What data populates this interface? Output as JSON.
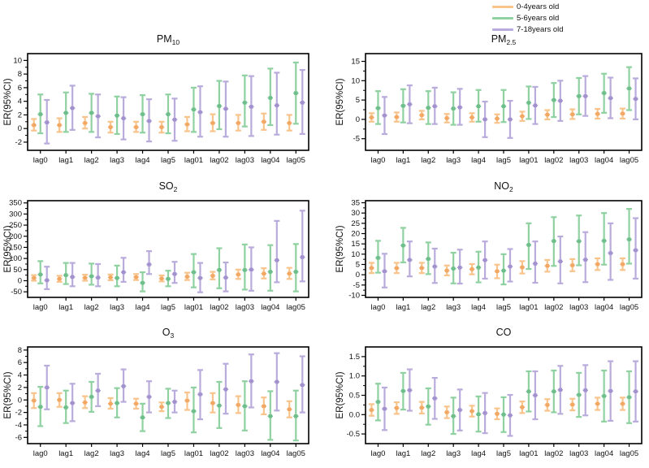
{
  "legend": {
    "items": [
      {
        "label": "0-4years old",
        "color": "#F8C48C"
      },
      {
        "label": "5-6years old",
        "color": "#8FD1A0"
      },
      {
        "label": "7-18years old",
        "color": "#B9ABDB"
      }
    ]
  },
  "chart_data": {
    "type": "errorbar",
    "ylabel": "ER(95%CI)",
    "grid": false,
    "legend_position": "top-right",
    "categories": [
      "lag0",
      "lag1",
      "lag2",
      "lag3",
      "lag4",
      "lag5",
      "lag01",
      "lag02",
      "lag03",
      "lag04",
      "lag05"
    ],
    "series_names": [
      "0-4years old",
      "5-6years old",
      "7-18years old"
    ],
    "series_colors": [
      "#F8C48C",
      "#8FD1A0",
      "#B9ABDB"
    ],
    "marker_colors": [
      "#F2A763",
      "#6DBE8A",
      "#A291CE"
    ],
    "panels": [
      {
        "id": "pm10",
        "title_main": "PM",
        "title_sub": "10",
        "ylim": [
          -3.2,
          11
        ],
        "yticks": [
          -2,
          0,
          2,
          4,
          6,
          8,
          10
        ],
        "ytick_labels": [
          "-2",
          "0",
          "2",
          "4",
          "6",
          "8",
          "10"
        ],
        "series": [
          {
            "name": "0-4years old",
            "mean": [
              0.5,
              0.5,
              0.8,
              0.2,
              0.2,
              0.2,
              0.6,
              0.8,
              0.8,
              1.0,
              0.8
            ],
            "lower": [
              -0.3,
              -0.5,
              0.0,
              -0.6,
              -0.5,
              -0.6,
              -0.4,
              -0.4,
              -0.3,
              -0.2,
              -0.3
            ],
            "upper": [
              1.4,
              1.5,
              1.7,
              1.0,
              1.0,
              1.0,
              1.7,
              2.1,
              2.0,
              2.2,
              2.0
            ]
          },
          {
            "name": "5-6years old",
            "mean": [
              2.1,
              2.3,
              2.3,
              1.9,
              2.1,
              2.1,
              2.8,
              3.3,
              3.8,
              4.5,
              5.2
            ],
            "lower": [
              -0.7,
              -0.5,
              -0.5,
              -0.8,
              -0.6,
              -0.7,
              -0.5,
              -0.1,
              0.3,
              0.5,
              0.7
            ],
            "upper": [
              5.0,
              5.3,
              5.1,
              4.7,
              4.9,
              5.0,
              6.0,
              7.0,
              7.8,
              8.8,
              9.7
            ]
          },
          {
            "name": "7-18years old",
            "mean": [
              0.9,
              3.0,
              1.8,
              1.5,
              1.1,
              1.3,
              2.4,
              2.9,
              3.2,
              3.4,
              3.8
            ],
            "lower": [
              -2.2,
              -0.2,
              -1.3,
              -1.6,
              -1.9,
              -1.8,
              -1.2,
              -1.2,
              -1.1,
              -0.9,
              -0.8
            ],
            "upper": [
              4.2,
              6.3,
              5.0,
              4.6,
              4.3,
              4.4,
              6.2,
              6.9,
              7.7,
              8.2,
              8.6
            ]
          }
        ]
      },
      {
        "id": "pm25",
        "title_main": "PM",
        "title_sub": "2.5",
        "ylim": [
          -8,
          17
        ],
        "yticks": [
          -5,
          0,
          5,
          10,
          15
        ],
        "ytick_labels": [
          "-5",
          "0",
          "5",
          "10",
          "15"
        ],
        "series": [
          {
            "name": "0-4years old",
            "mean": [
              0.5,
              0.6,
              1.1,
              0.3,
              0.5,
              0.2,
              0.8,
              1.2,
              1.3,
              1.4,
              1.5
            ],
            "lower": [
              -0.6,
              -0.6,
              0.0,
              -0.8,
              -0.6,
              -0.9,
              -0.4,
              0.0,
              0.1,
              0.2,
              0.2
            ],
            "upper": [
              1.6,
              1.8,
              2.2,
              1.4,
              1.6,
              1.3,
              2.0,
              2.4,
              2.6,
              2.7,
              2.8
            ]
          },
          {
            "name": "5-6years old",
            "mean": [
              2.9,
              3.5,
              3.0,
              2.8,
              3.4,
              3.4,
              4.3,
              5.0,
              6.0,
              6.8,
              8.0
            ],
            "lower": [
              -1.2,
              -0.8,
              -1.2,
              -1.4,
              -0.6,
              -0.7,
              0.1,
              0.6,
              1.3,
              1.7,
              2.4
            ],
            "upper": [
              7.3,
              7.8,
              7.3,
              7.0,
              7.6,
              7.6,
              8.5,
              9.4,
              10.7,
              11.8,
              13.5
            ]
          },
          {
            "name": "7-18years old",
            "mean": [
              1.0,
              3.9,
              3.4,
              3.1,
              0.0,
              0.0,
              3.6,
              4.8,
              6.0,
              5.5,
              5.3
            ],
            "lower": [
              -3.8,
              -1.0,
              -1.2,
              -1.4,
              -4.6,
              -4.8,
              -1.2,
              -0.4,
              0.9,
              0.3,
              0.0
            ],
            "upper": [
              5.8,
              8.8,
              8.2,
              7.9,
              4.6,
              4.8,
              8.4,
              10.0,
              11.2,
              10.8,
              10.6
            ]
          }
        ]
      },
      {
        "id": "so2",
        "title_main": "SO",
        "title_sub": "2",
        "ylim": [
          -75,
          360
        ],
        "yticks": [
          -50,
          0,
          50,
          100,
          150,
          200,
          250,
          300,
          350
        ],
        "ytick_labels": [
          "-50",
          "0",
          "50",
          "100",
          "150",
          "200",
          "250",
          "300",
          "350"
        ],
        "series": [
          {
            "name": "0-4years old",
            "mean": [
              12,
              8,
              13,
              15,
              16,
              10,
              18,
              22,
              28,
              32,
              32
            ],
            "lower": [
              0,
              -5,
              0,
              2,
              3,
              -3,
              3,
              6,
              8,
              10,
              8
            ],
            "upper": [
              25,
              22,
              27,
              28,
              30,
              24,
              36,
              40,
              50,
              56,
              58
            ]
          },
          {
            "name": "5-6years old",
            "mean": [
              28,
              25,
              20,
              12,
              -10,
              8,
              38,
              48,
              48,
              40,
              40
            ],
            "lower": [
              -12,
              -15,
              -18,
              -25,
              -48,
              -25,
              -30,
              -34,
              -40,
              -45,
              -48
            ],
            "upper": [
              88,
              80,
              77,
              68,
              38,
              45,
              120,
              146,
              163,
              160,
              165
            ]
          },
          {
            "name": "7-18years old",
            "mean": [
              2,
              17,
              14,
              38,
              73,
              30,
              12,
              14,
              50,
              92,
              106
            ],
            "lower": [
              -38,
              -25,
              -25,
              -5,
              30,
              -10,
              -52,
              -48,
              -45,
              -7,
              -3
            ],
            "upper": [
              63,
              80,
              75,
              103,
              133,
              85,
              80,
              82,
              150,
              269,
              315
            ]
          }
        ]
      },
      {
        "id": "no2",
        "title_main": "NO",
        "title_sub": "2",
        "ylim": [
          -11,
          36
        ],
        "yticks": [
          -10,
          -5,
          0,
          5,
          10,
          15,
          20,
          25,
          30,
          35
        ],
        "ytick_labels": [
          "-10",
          "-5",
          "0",
          "5",
          "10",
          "15",
          "20",
          "25",
          "30",
          "35"
        ],
        "series": [
          {
            "name": "0-4years old",
            "mean": [
              3.3,
              3.2,
              3.3,
              2.0,
              2.7,
              1.7,
              3.6,
              4.3,
              4.6,
              5.1,
              5.1
            ],
            "lower": [
              0.8,
              0.8,
              0.8,
              -0.3,
              0.2,
              -1.7,
              0.6,
              1.5,
              1.7,
              2.3,
              2.3
            ],
            "upper": [
              5.8,
              5.8,
              5.8,
              4.5,
              5.2,
              4.9,
              6.6,
              7.2,
              7.6,
              8.0,
              8.0
            ]
          },
          {
            "name": "5-6years old",
            "mean": [
              8.2,
              14.2,
              7.7,
              3.0,
              3.5,
              2.0,
              14.5,
              16.4,
              16.3,
              16.5,
              17.2
            ],
            "lower": [
              1.0,
              6.0,
              0.3,
              -4.2,
              -3.7,
              -4.7,
              2.8,
              4.3,
              4.6,
              4.9,
              5.4
            ],
            "upper": [
              16.5,
              22.8,
              15.7,
              10.7,
              11.2,
              10.0,
              25.0,
              28.0,
              28.8,
              30.0,
              32.0
            ]
          },
          {
            "name": "7-18years old",
            "mean": [
              1.7,
              7.2,
              4.0,
              3.5,
              7.1,
              4.0,
              5.4,
              6.5,
              7.3,
              10.5,
              11.9
            ],
            "lower": [
              -6.2,
              -0.8,
              -4.0,
              -4.3,
              -1.9,
              -3.3,
              -3.9,
              -4.2,
              -3.6,
              -2.5,
              -1.9
            ],
            "upper": [
              10.2,
              16.2,
              12.7,
              12.2,
              16.2,
              12.5,
              16.2,
              18.6,
              20.7,
              25.0,
              27.5
            ]
          }
        ]
      },
      {
        "id": "o3",
        "title_main": "O",
        "title_sub": "3",
        "ylim": [
          -7,
          8.5
        ],
        "yticks": [
          -6,
          -4,
          -2,
          0,
          2,
          4,
          6,
          8
        ],
        "ytick_labels": [
          "-6",
          "-4",
          "-2",
          "0",
          "2",
          "4",
          "6",
          "8"
        ],
        "series": [
          {
            "name": "0-4years old",
            "mean": [
              -0.1,
              0.0,
              -0.4,
              -0.6,
              -0.6,
              -1.1,
              -0.1,
              -0.5,
              -0.8,
              -1.0,
              -1.5
            ],
            "lower": [
              -1.3,
              -1.1,
              -1.3,
              -1.4,
              -1.4,
              -1.8,
              -1.6,
              -2.0,
              -2.1,
              -2.3,
              -2.8
            ],
            "upper": [
              1.1,
              1.1,
              0.6,
              0.3,
              0.2,
              -0.4,
              1.2,
              1.1,
              0.6,
              0.4,
              -0.2
            ]
          },
          {
            "name": "5-6years old",
            "mean": [
              -1.1,
              -1.2,
              0.5,
              -0.5,
              -2.8,
              -0.5,
              -1.8,
              -0.9,
              -1.0,
              -2.6,
              -2.6
            ],
            "lower": [
              -4.2,
              -3.7,
              -1.9,
              -2.8,
              -5.0,
              -2.9,
              -5.2,
              -4.5,
              -4.9,
              -6.4,
              -6.5
            ],
            "upper": [
              2.1,
              1.5,
              2.9,
              1.9,
              -0.6,
              1.8,
              2.0,
              2.9,
              3.0,
              1.4,
              1.5
            ]
          },
          {
            "name": "7-18years old",
            "mean": [
              2.0,
              -0.5,
              1.5,
              2.2,
              0.5,
              -0.3,
              0.9,
              1.7,
              3.0,
              2.9,
              2.4
            ],
            "lower": [
              -1.5,
              -3.4,
              -1.0,
              -0.3,
              -2.0,
              -2.0,
              -3.1,
              -2.2,
              -1.2,
              -1.7,
              -2.0
            ],
            "upper": [
              5.5,
              2.6,
              4.2,
              4.9,
              3.0,
              1.5,
              4.8,
              5.8,
              7.3,
              7.5,
              7.0
            ]
          }
        ]
      },
      {
        "id": "co",
        "title_main": "CO",
        "title_sub": "",
        "ylim": [
          -0.75,
          1.75
        ],
        "yticks": [
          -0.5,
          0.0,
          0.5,
          1.0,
          1.5
        ],
        "ytick_labels": [
          "-0.5",
          "0.0",
          "0.5",
          "1.0",
          "1.5"
        ],
        "series": [
          {
            "name": "0-4years old",
            "mean": [
              0.12,
              0.17,
              0.18,
              0.06,
              0.09,
              0.02,
              0.19,
              0.25,
              0.26,
              0.28,
              0.28
            ],
            "lower": [
              -0.03,
              0.02,
              0.03,
              -0.09,
              -0.05,
              -0.12,
              0.04,
              0.1,
              0.11,
              0.12,
              0.12
            ],
            "upper": [
              0.27,
              0.32,
              0.33,
              0.21,
              0.23,
              0.16,
              0.34,
              0.4,
              0.41,
              0.44,
              0.44
            ]
          },
          {
            "name": "5-6years old",
            "mean": [
              0.33,
              0.61,
              0.21,
              -0.04,
              0.01,
              0.0,
              0.6,
              0.6,
              0.51,
              0.48,
              0.45
            ],
            "lower": [
              -0.15,
              0.13,
              -0.26,
              -0.5,
              -0.44,
              -0.45,
              0.08,
              0.06,
              -0.06,
              -0.18,
              -0.22
            ],
            "upper": [
              0.8,
              1.08,
              0.68,
              0.44,
              0.47,
              0.45,
              1.12,
              1.14,
              1.08,
              1.14,
              1.12
            ]
          },
          {
            "name": "7-18years old",
            "mean": [
              0.15,
              0.63,
              0.42,
              0.12,
              0.04,
              -0.02,
              0.5,
              0.64,
              0.63,
              0.61,
              0.6
            ],
            "lower": [
              -0.4,
              0.1,
              -0.11,
              -0.41,
              -0.48,
              -0.55,
              -0.12,
              0.02,
              -0.02,
              -0.16,
              -0.18
            ],
            "upper": [
              0.7,
              1.17,
              0.95,
              0.65,
              0.56,
              0.51,
              1.12,
              1.26,
              1.28,
              1.38,
              1.38
            ]
          }
        ]
      }
    ]
  }
}
